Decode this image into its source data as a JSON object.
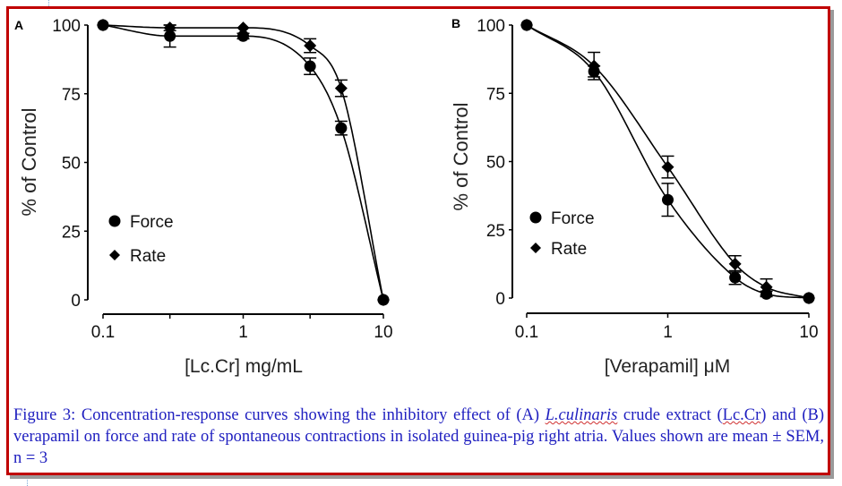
{
  "figure": {
    "caption_parts": {
      "p1": "Figure 3: Concentration-response curves showing the inhibitory effect of (A) ",
      "species": "L.culinaris",
      "p2": " crude extract (",
      "abbr": "Lc.Cr",
      "p3": ") and (B) verapamil on force and rate of spontaneous contractions in isolated guinea-pig right atria. Values shown are mean ± SEM, n = 3"
    },
    "border_color": "#c00000",
    "caption_color": "#2020c0"
  },
  "chart_data": [
    {
      "type": "line",
      "panel": "A",
      "title": "",
      "xlabel": "[Lc.Cr] mg/mL",
      "ylabel": "% of Control",
      "xscale": "log",
      "xlim": [
        0.1,
        10
      ],
      "ylim": [
        0,
        100
      ],
      "xticks": [
        0.1,
        0.3,
        1,
        3,
        10
      ],
      "xtick_labels": [
        "0.1",
        "",
        "1",
        "",
        "10"
      ],
      "yticks": [
        0,
        25,
        50,
        75,
        100
      ],
      "ytick_labels": [
        "0",
        "25",
        "50",
        "75",
        "100"
      ],
      "grid": false,
      "legend_position": "lower-left",
      "series": [
        {
          "name": "Force",
          "marker": "circle",
          "x": [
            0.1,
            0.3,
            1,
            3,
            5,
            10
          ],
          "y": [
            100,
            96,
            96,
            85,
            62.5,
            0
          ],
          "sem": [
            0,
            4,
            1,
            3,
            2.5,
            0
          ]
        },
        {
          "name": "Rate",
          "marker": "diamond",
          "x": [
            0.1,
            0.3,
            1,
            3,
            5,
            10
          ],
          "y": [
            100,
            99,
            99,
            92.5,
            77,
            0
          ],
          "sem": [
            0,
            1,
            0.5,
            2.5,
            3,
            0
          ]
        }
      ]
    },
    {
      "type": "line",
      "panel": "B",
      "title": "",
      "xlabel": "[Verapamil] μM",
      "ylabel": "% of Control",
      "xscale": "log",
      "xlim": [
        0.1,
        10
      ],
      "ylim": [
        0,
        100
      ],
      "xticks": [
        0.1,
        1,
        10
      ],
      "xtick_labels": [
        "0.1",
        "1",
        "10"
      ],
      "yticks": [
        0,
        25,
        50,
        75,
        100
      ],
      "ytick_labels": [
        "0",
        "25",
        "50",
        "75",
        "100"
      ],
      "grid": false,
      "legend_position": "lower-left",
      "series": [
        {
          "name": "Force",
          "marker": "circle",
          "x": [
            0.1,
            0.3,
            1,
            3,
            5,
            10
          ],
          "y": [
            100,
            83,
            36,
            7.5,
            1.5,
            0
          ],
          "sem": [
            0,
            2,
            6,
            2.5,
            1,
            0
          ]
        },
        {
          "name": "Rate",
          "marker": "diamond",
          "x": [
            0.1,
            0.3,
            1,
            3,
            5,
            10
          ],
          "y": [
            100,
            85,
            48,
            12.5,
            4,
            0
          ],
          "sem": [
            0,
            5,
            4,
            3,
            3,
            0
          ]
        }
      ]
    }
  ]
}
